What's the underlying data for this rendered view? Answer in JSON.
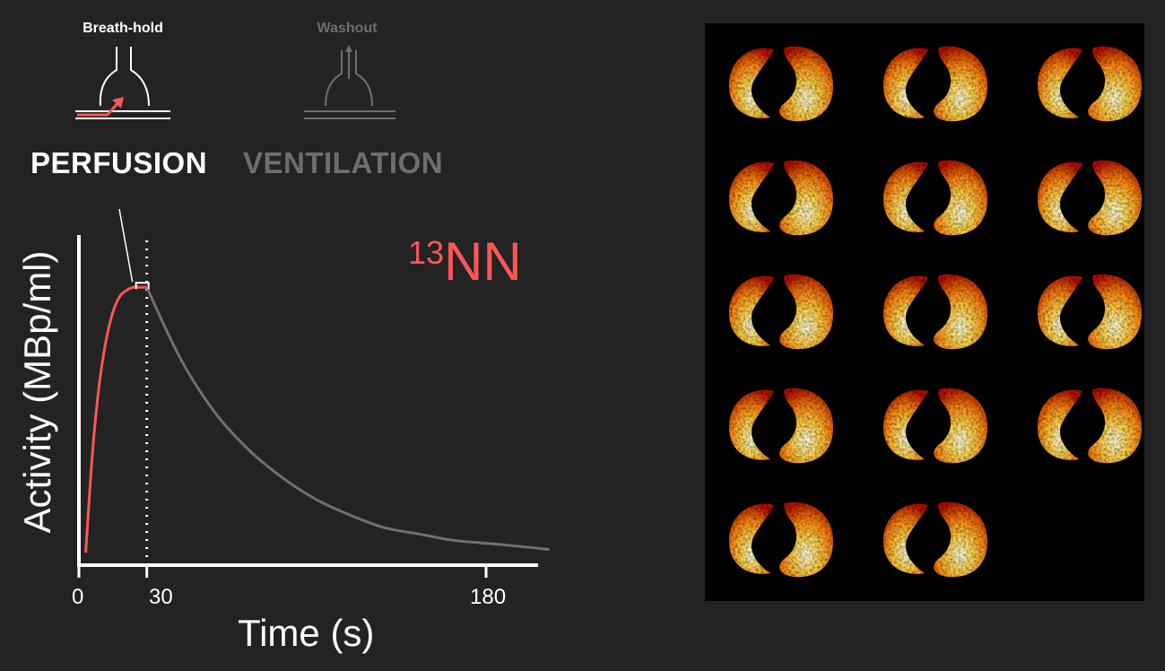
{
  "phases": {
    "breath_hold": {
      "label": "Breath-hold",
      "color": "#ffffff",
      "active": true
    },
    "washout": {
      "label": "Washout",
      "color": "#6e6e6e",
      "active": false
    }
  },
  "modes": {
    "perfusion": {
      "label": "PERFUSION",
      "color": "#ffffff"
    },
    "ventilation": {
      "label": "VENTILATION",
      "color": "#6e6e6e"
    }
  },
  "tracer": {
    "superscript": "13",
    "symbol": "NN",
    "color": "#ff5555"
  },
  "chart_data": {
    "type": "line",
    "xlabel": "Time (s)",
    "ylabel": "Activity (MBp/ml)",
    "x_ticks": [
      "0",
      "30",
      "180"
    ],
    "xlim": [
      0,
      210
    ],
    "ylim": [
      0,
      1
    ],
    "marker_line_x": 30,
    "series": [
      {
        "color": "#ff5555",
        "x": [
          3,
          6,
          9,
          12,
          15,
          18,
          21,
          24,
          27,
          30
        ],
        "y": [
          0.04,
          0.36,
          0.58,
          0.72,
          0.81,
          0.86,
          0.88,
          0.89,
          0.89,
          0.89
        ]
      },
      {
        "color": "#707070",
        "x": [
          30,
          45,
          60,
          75,
          90,
          105,
          120,
          135,
          150,
          165,
          180,
          195,
          208
        ],
        "y": [
          0.89,
          0.66,
          0.49,
          0.37,
          0.28,
          0.21,
          0.16,
          0.12,
          0.1,
          0.08,
          0.07,
          0.06,
          0.05
        ]
      }
    ]
  },
  "image_panel": {
    "rows": 5,
    "cols": 3,
    "slices": 14
  }
}
